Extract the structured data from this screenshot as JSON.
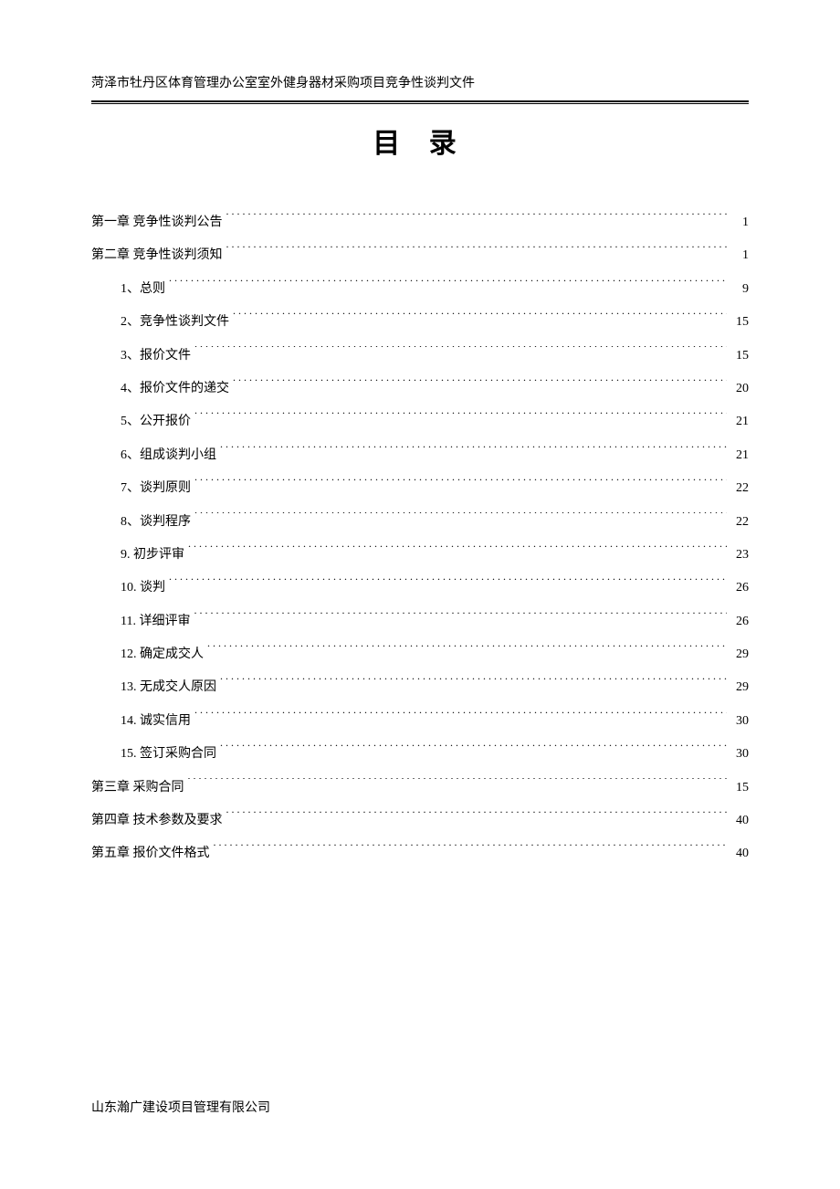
{
  "header": "菏泽市牡丹区体育管理办公室室外健身器材采购项目竞争性谈判文件",
  "title": "目 录",
  "footer": "山东瀚广建设项目管理有限公司",
  "colors": {
    "text": "#000000",
    "background": "#ffffff",
    "line": "#000000"
  },
  "typography": {
    "header_fontsize": 14,
    "title_fontsize": 30,
    "toc_fontsize": 14,
    "footer_fontsize": 14,
    "font_family": "SimSun"
  },
  "toc": [
    {
      "level": 1,
      "label": "第一章  竞争性谈判公告",
      "page": "1"
    },
    {
      "level": 1,
      "label": "第二章  竞争性谈判须知",
      "page": "1"
    },
    {
      "level": 2,
      "label": "1、总则",
      "page": "9"
    },
    {
      "level": 2,
      "label": "2、竞争性谈判文件",
      "page": "15"
    },
    {
      "level": 2,
      "label": "3、报价文件",
      "page": "15"
    },
    {
      "level": 2,
      "label": "4、报价文件的递交",
      "page": "20"
    },
    {
      "level": 2,
      "label": "5、公开报价",
      "page": "21"
    },
    {
      "level": 2,
      "label": "6、组成谈判小组",
      "page": "21"
    },
    {
      "level": 2,
      "label": "7、谈判原则",
      "page": "22"
    },
    {
      "level": 2,
      "label": "8、谈判程序",
      "page": "22"
    },
    {
      "level": 2,
      "label": "9. 初步评审",
      "page": "23"
    },
    {
      "level": 2,
      "label": "10. 谈判",
      "page": "26"
    },
    {
      "level": 2,
      "label": "11. 详细评审",
      "page": "26"
    },
    {
      "level": 2,
      "label": "12. 确定成交人",
      "page": "29"
    },
    {
      "level": 2,
      "label": "13. 无成交人原因",
      "page": "29"
    },
    {
      "level": 2,
      "label": "14. 诚实信用",
      "page": "30"
    },
    {
      "level": 2,
      "label": "15. 签订采购合同",
      "page": "30"
    },
    {
      "level": 1,
      "label": "第三章  采购合同",
      "page": "15"
    },
    {
      "level": 1,
      "label": "第四章  技术参数及要求",
      "page": "40"
    },
    {
      "level": 1,
      "label": "第五章    报价文件格式",
      "page": "40"
    }
  ]
}
